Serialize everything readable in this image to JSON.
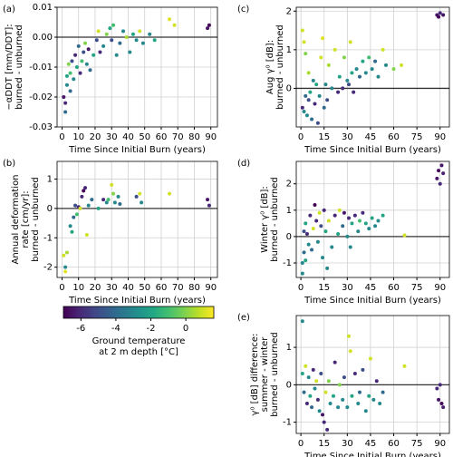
{
  "chart_data": [
    {
      "type": "scatter",
      "panel": "(a)",
      "ylabel": [
        "−αDDT [mm/DDT]:",
        "burned - unburned"
      ],
      "xlabel": "Time Since Initial Burn (years)",
      "xlim": [
        -3,
        94
      ],
      "xticks": [
        0,
        10,
        20,
        30,
        40,
        50,
        60,
        70,
        80,
        90
      ],
      "ylim": [
        -0.03,
        0.01
      ],
      "yticks": [
        -0.03,
        -0.02,
        -0.01,
        {
          "value": 0,
          "label": "0.00"
        },
        0.01
      ],
      "hline": 0,
      "grid": true,
      "x": [
        1,
        2,
        2,
        3,
        3,
        4,
        5,
        5,
        6,
        7,
        8,
        9,
        10,
        11,
        12,
        13,
        14,
        15,
        16,
        17,
        19,
        21,
        22,
        23,
        25,
        27,
        29,
        30,
        31,
        33,
        35,
        37,
        39,
        41,
        43,
        45,
        47,
        49,
        53,
        56,
        65,
        68,
        88,
        89
      ],
      "y": [
        -0.02,
        -0.022,
        -0.025,
        -0.013,
        -0.016,
        -0.009,
        -0.012,
        -0.018,
        -0.008,
        -0.014,
        -0.006,
        -0.01,
        -0.003,
        -0.012,
        -0.008,
        -0.005,
        -0.002,
        -0.009,
        -0.004,
        -0.011,
        -0.006,
        -0.001,
        0.002,
        -0.005,
        -0.003,
        0.001,
        0.003,
        -0.001,
        0.004,
        -0.006,
        -0.002,
        0.002,
        0.0,
        -0.005,
        0.001,
        -0.001,
        0.002,
        -0.002,
        0.001,
        -0.001,
        0.006,
        0.004,
        0.003,
        0.004
      ],
      "c": [
        -6.5,
        -6,
        -4,
        -2,
        -3,
        0,
        -1,
        -4,
        -5,
        -3,
        -6,
        -2,
        -4,
        -6,
        -1,
        -5,
        0,
        -3,
        -6.5,
        -4,
        -2,
        -5,
        1,
        -6,
        -3,
        0,
        -2,
        -5,
        -1,
        -3,
        -4,
        -3,
        0.5,
        -3,
        -2,
        -3,
        1,
        -3,
        -3,
        -2,
        1.2,
        1,
        -6.5,
        -6.8
      ]
    },
    {
      "type": "scatter",
      "panel": "(b)",
      "ylabel": [
        "Annual deformation",
        "rate [cm/yr]:",
        "burned - unburned"
      ],
      "xlabel": "Time Since Initial Burn (years)",
      "xlim": [
        -3,
        94
      ],
      "xticks": [
        0,
        10,
        20,
        30,
        40,
        50,
        60,
        70,
        80,
        90
      ],
      "ylim": [
        -2.35,
        1.6
      ],
      "yticks": [
        -2,
        -1,
        0,
        1
      ],
      "hline": 0,
      "grid": true,
      "x": [
        1,
        2,
        2,
        3,
        5,
        6,
        7,
        8,
        9,
        10,
        11,
        12,
        13,
        14,
        15,
        16,
        18,
        22,
        25,
        27,
        28,
        30,
        31,
        32,
        34,
        35,
        45,
        47,
        48,
        65,
        88,
        89
      ],
      "y": [
        -1.6,
        -2.0,
        -2.15,
        -1.5,
        -0.6,
        -0.8,
        -0.3,
        0.1,
        -0.2,
        0.05,
        0.0,
        0.4,
        0.6,
        0.7,
        -0.9,
        0.1,
        0.3,
        0.0,
        0.3,
        0.2,
        0.3,
        0.8,
        0.5,
        0.2,
        0.4,
        0.15,
        0.4,
        0.5,
        0.2,
        0.5,
        0.3,
        0.1
      ],
      "c": [
        1,
        -3,
        1.2,
        0.5,
        -3,
        -2,
        -4,
        -5,
        -1,
        -6,
        1,
        -6,
        -7,
        -6,
        1,
        -3,
        -4,
        -2,
        -6,
        -3,
        -1,
        1,
        0,
        -3,
        -3,
        -4,
        -5,
        1,
        -3,
        1,
        -6.5,
        -6
      ]
    },
    {
      "type": "scatter",
      "panel": "(c)",
      "ylabel": [
        "Aug γ⁰ [dB]:",
        "burned - unburned"
      ],
      "xlabel": "Time Since Initial Burn (years)",
      "xlim": [
        -3,
        96
      ],
      "xticks": [
        0,
        15,
        30,
        45,
        60,
        75,
        90
      ],
      "ylim": [
        -1.0,
        2.1
      ],
      "yticks": [
        0,
        1,
        2
      ],
      "hline": 0,
      "grid": true,
      "x": [
        1,
        1,
        2,
        2,
        3,
        3,
        4,
        5,
        5,
        6,
        7,
        8,
        9,
        10,
        11,
        12,
        13,
        14,
        15,
        16,
        17,
        18,
        20,
        22,
        24,
        25,
        27,
        28,
        30,
        31,
        32,
        33,
        34,
        36,
        38,
        40,
        42,
        44,
        46,
        48,
        50,
        53,
        55,
        60,
        65,
        88,
        89,
        90,
        92
      ],
      "y": [
        1.5,
        -0.5,
        1.2,
        -0.6,
        0.9,
        -0.2,
        -0.7,
        0.4,
        -0.3,
        -0.1,
        -0.8,
        0.2,
        -0.4,
        0.1,
        -0.9,
        -0.2,
        0.8,
        1.3,
        -0.5,
        0.1,
        -0.3,
        0.6,
        0.0,
        1.0,
        -0.1,
        0.3,
        0.0,
        0.8,
        0.2,
        0.1,
        1.2,
        0.4,
        -0.1,
        0.5,
        0.3,
        0.7,
        0.4,
        0.8,
        0.5,
        0.7,
        0.3,
        1.0,
        0.6,
        0.5,
        0.6,
        1.9,
        1.85,
        1.95,
        1.9
      ],
      "c": [
        1,
        -6,
        1,
        -3,
        0,
        -4,
        -3,
        0.5,
        -5,
        -2,
        -4,
        -3,
        -6,
        -2,
        -5,
        -3,
        1,
        1.2,
        -4,
        -3,
        -5,
        0.5,
        -3,
        1,
        -6,
        -2,
        -6,
        0,
        -3,
        -5,
        1,
        -2,
        -6,
        -3,
        -4,
        -2,
        -3,
        -1,
        -3,
        -4,
        -3,
        1,
        -3,
        0,
        1,
        -6.5,
        -6.8,
        -6,
        -6.5
      ]
    },
    {
      "type": "scatter",
      "panel": "(d)",
      "ylabel": [
        "Winter γ⁰ [dB]:",
        "burned - unburned"
      ],
      "xlabel": "Time Since Initial Burn (years)",
      "xlim": [
        -3,
        96
      ],
      "xticks": [
        0,
        15,
        30,
        45,
        60,
        75,
        90
      ],
      "ylim": [
        -1.55,
        2.85
      ],
      "yticks": [
        -1,
        0,
        1,
        2
      ],
      "hline": 0,
      "grid": true,
      "x": [
        1,
        1,
        2,
        2,
        3,
        3,
        4,
        5,
        6,
        7,
        8,
        9,
        10,
        11,
        12,
        13,
        14,
        15,
        16,
        17,
        18,
        20,
        22,
        24,
        25,
        27,
        28,
        30,
        31,
        32,
        33,
        35,
        37,
        38,
        40,
        42,
        44,
        46,
        48,
        50,
        53,
        67,
        88,
        89,
        90,
        91,
        92
      ],
      "y": [
        -1.0,
        -1.4,
        0.2,
        -0.6,
        0.5,
        -0.9,
        0.1,
        -0.3,
        0.8,
        -0.5,
        0.3,
        1.2,
        0.6,
        -0.2,
        0.9,
        0.4,
        -0.8,
        1.0,
        0.2,
        -1.2,
        0.6,
        -0.4,
        0.8,
        0.1,
        1.0,
        0.4,
        0.9,
        0.0,
        0.7,
        -0.4,
        0.5,
        0.8,
        0.2,
        0.6,
        0.9,
        0.5,
        0.3,
        0.7,
        0.4,
        0.6,
        0.8,
        0.05,
        2.2,
        2.5,
        2.0,
        2.7,
        2.4
      ],
      "c": [
        -3,
        -3,
        -5,
        -4,
        -2,
        -2,
        -6,
        -3,
        -6,
        -4,
        1,
        -7,
        -6,
        -3,
        1,
        -5,
        -3,
        -6,
        -2,
        -3,
        1,
        -3,
        -6,
        -2,
        1,
        -4,
        -6.5,
        -3,
        -6,
        -3,
        -2,
        -6,
        -3,
        -1,
        -6,
        -2,
        -3,
        -2,
        -3,
        -3,
        -2,
        1,
        -6.5,
        -6.8,
        -6,
        -6.5,
        -6.2
      ]
    },
    {
      "type": "scatter",
      "panel": "(e)",
      "ylabel": [
        "γ⁰ [dB] difference:",
        "summer - winter",
        "burned - unburned"
      ],
      "xlabel": "Time Since Initial Burn (years)",
      "xlim": [
        -3,
        96
      ],
      "xticks": [
        0,
        15,
        30,
        45,
        60,
        75,
        90
      ],
      "ylim": [
        -1.3,
        1.85
      ],
      "yticks": [
        -1,
        0,
        1
      ],
      "hline": 0,
      "grid": true,
      "x": [
        1,
        1,
        2,
        3,
        4,
        5,
        6,
        7,
        8,
        9,
        10,
        11,
        12,
        13,
        14,
        15,
        16,
        17,
        18,
        19,
        21,
        22,
        24,
        25,
        27,
        28,
        30,
        31,
        32,
        33,
        35,
        37,
        38,
        40,
        42,
        44,
        45,
        47,
        49,
        51,
        53,
        67,
        88,
        89,
        90,
        91,
        92
      ],
      "y": [
        1.7,
        0.3,
        -0.2,
        0.5,
        -0.5,
        0.2,
        -0.3,
        -0.6,
        0.4,
        -0.1,
        0.1,
        -0.4,
        -0.7,
        0.3,
        -0.8,
        -1.0,
        -0.2,
        -1.2,
        0.1,
        -0.5,
        -0.3,
        0.6,
        -0.6,
        0.0,
        -0.4,
        0.2,
        -0.6,
        1.3,
        0.9,
        -0.3,
        0.3,
        -0.5,
        -0.2,
        0.4,
        -0.7,
        -0.3,
        0.7,
        -0.4,
        0.1,
        -0.5,
        -0.2,
        0.5,
        -0.1,
        -0.4,
        0.0,
        -0.5,
        -0.6
      ],
      "c": [
        -3,
        -2,
        -4,
        1,
        -6,
        -3,
        -2,
        -4,
        -6,
        -3,
        1,
        -6,
        -3,
        -5,
        -6.5,
        -6,
        1,
        -6,
        0,
        -3,
        -2,
        -6,
        -3,
        0,
        -3,
        -5,
        -3,
        1,
        1,
        -2,
        -6,
        -3,
        -4,
        -5,
        -3,
        -2,
        1,
        -3,
        -6,
        -3,
        -4,
        1,
        -6,
        -6.5,
        -6,
        -6.8,
        -6.2
      ]
    }
  ],
  "colorbar": {
    "label": [
      "Ground temperature",
      "at 2 m depth [°C]"
    ],
    "lim": [
      -7,
      1.6
    ],
    "ticks": [
      -6,
      -4,
      -2,
      0
    ],
    "colormap": "viridis"
  }
}
